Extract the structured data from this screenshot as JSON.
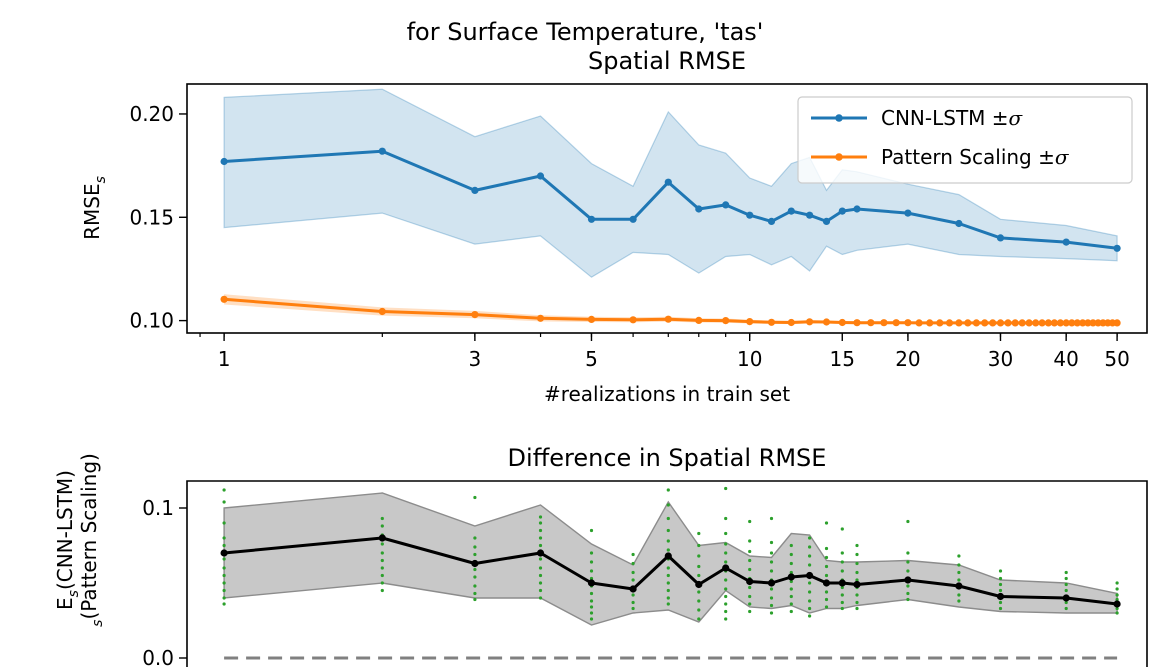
{
  "figure": {
    "suptitle": "for Surface Temperature, 'tas'"
  },
  "chart_data": [
    {
      "type": "line",
      "title": "Spatial RMSE",
      "xlabel": "#realizations in train set",
      "ylabel_base": "RMSE",
      "ylabel_sub": "s",
      "xscale": "log",
      "xlim": [
        0.85,
        57
      ],
      "ylim": [
        0.094,
        0.2145
      ],
      "xticks": [
        1,
        3,
        5,
        10,
        15,
        20,
        30,
        40,
        50
      ],
      "xtick_labels": [
        "1",
        "3",
        "5",
        "10",
        "15",
        "20",
        "30",
        "40",
        "50"
      ],
      "yticks": [
        0.1,
        0.15,
        0.2
      ],
      "ytick_labels": [
        "0.10",
        "0.15",
        "0.20"
      ],
      "legend_position": "upper right",
      "series": [
        {
          "name": "CNN-LSTM ±σ",
          "legend_base": "CNN-LSTM ±",
          "color": "#1f77b4",
          "x": [
            1,
            2,
            3,
            4,
            5,
            6,
            7,
            8,
            9,
            10,
            11,
            12,
            13,
            14,
            15,
            16,
            20,
            25,
            30,
            40,
            50
          ],
          "y": [
            0.177,
            0.182,
            0.163,
            0.17,
            0.149,
            0.149,
            0.167,
            0.154,
            0.156,
            0.151,
            0.148,
            0.153,
            0.151,
            0.148,
            0.153,
            0.154,
            0.152,
            0.147,
            0.14,
            0.138,
            0.135
          ],
          "lower": [
            0.145,
            0.152,
            0.137,
            0.141,
            0.121,
            0.133,
            0.132,
            0.123,
            0.131,
            0.132,
            0.127,
            0.131,
            0.124,
            0.136,
            0.132,
            0.134,
            0.137,
            0.132,
            0.131,
            0.13,
            0.129
          ],
          "upper": [
            0.208,
            0.212,
            0.189,
            0.199,
            0.176,
            0.165,
            0.201,
            0.185,
            0.181,
            0.169,
            0.165,
            0.176,
            0.179,
            0.163,
            0.173,
            0.172,
            0.166,
            0.161,
            0.149,
            0.146,
            0.141
          ]
        },
        {
          "name": "Pattern Scaling ±σ",
          "legend_base": "Pattern Scaling ±",
          "color": "#ff7f0e",
          "x": [
            1,
            2,
            3,
            4,
            5,
            6,
            7,
            8,
            9,
            10,
            11,
            12,
            13,
            14,
            15,
            16,
            17,
            18,
            19,
            20,
            21,
            22,
            23,
            24,
            25,
            26,
            27,
            28,
            29,
            30,
            31,
            32,
            33,
            34,
            35,
            36,
            37,
            38,
            39,
            40,
            41,
            42,
            43,
            44,
            45,
            46,
            47,
            48,
            49,
            50
          ],
          "y": [
            0.1103,
            0.1044,
            0.1029,
            0.1011,
            0.1006,
            0.1004,
            0.1007,
            0.1001,
            0.1,
            0.0995,
            0.0992,
            0.0991,
            0.0994,
            0.0993,
            0.0991,
            0.099,
            0.099,
            0.099,
            0.099,
            0.099,
            0.0989,
            0.0989,
            0.0989,
            0.0989,
            0.0989,
            0.0989,
            0.0989,
            0.0989,
            0.0989,
            0.0989,
            0.0989,
            0.0989,
            0.0989,
            0.0989,
            0.0989,
            0.0989,
            0.0989,
            0.0989,
            0.0989,
            0.0989,
            0.0989,
            0.0989,
            0.0989,
            0.0989,
            0.0989,
            0.0989,
            0.0989,
            0.0989,
            0.0989,
            0.0989
          ],
          "spread": [
            0.0025,
            0.002,
            0.0018,
            0.0015,
            0.0013,
            0.0012,
            0.0012,
            0.001,
            0.001,
            0.0009,
            0.0008,
            0.0008,
            0.0008,
            0.0007,
            0.0007,
            0.0007,
            0.0006,
            0.0006,
            0.0006,
            0.0006,
            0.0005,
            0.0005,
            0.0005,
            0.0005,
            0.0005,
            0.0005,
            0.0005,
            0.0005,
            0.0005,
            0.0005,
            0.0004,
            0.0004,
            0.0004,
            0.0004,
            0.0004,
            0.0004,
            0.0004,
            0.0004,
            0.0004,
            0.0004,
            0.0004,
            0.0004,
            0.0004,
            0.0004,
            0.0004,
            0.0004,
            0.0004,
            0.0004,
            0.0004,
            0.0004
          ]
        }
      ]
    },
    {
      "type": "line",
      "title": "Difference in Spatial RMSE",
      "ylabel_line1_base": "E",
      "ylabel_line1_sub": "s",
      "ylabel_line1_rest": "(CNN-LSTM)",
      "ylabel_line2_sub": "s",
      "ylabel_line2_rest": "(Pattern Scaling)",
      "xscale": "log",
      "xlim": [
        0.85,
        57
      ],
      "ylim": [
        -0.06,
        0.118
      ],
      "yticks": [
        0.0,
        0.1
      ],
      "ytick_labels": [
        "0.0",
        "0.1"
      ],
      "zero_line_color": "#808080",
      "band_color": "#c8c8c8",
      "band_edge_color": "#8c8c8c",
      "points_color": "#2ca02c",
      "series": [
        {
          "name": "mean difference",
          "color": "#000000",
          "x": [
            1,
            2,
            3,
            4,
            5,
            6,
            7,
            8,
            9,
            10,
            11,
            12,
            13,
            14,
            15,
            16,
            20,
            25,
            30,
            40,
            50
          ],
          "y": [
            0.07,
            0.08,
            0.063,
            0.07,
            0.05,
            0.046,
            0.068,
            0.049,
            0.06,
            0.051,
            0.05,
            0.054,
            0.055,
            0.05,
            0.05,
            0.049,
            0.052,
            0.048,
            0.041,
            0.04,
            0.036
          ],
          "lower": [
            0.04,
            0.05,
            0.04,
            0.04,
            0.022,
            0.03,
            0.032,
            0.024,
            0.045,
            0.034,
            0.033,
            0.035,
            0.03,
            0.033,
            0.033,
            0.035,
            0.039,
            0.034,
            0.031,
            0.03,
            0.03
          ],
          "upper": [
            0.1,
            0.11,
            0.088,
            0.102,
            0.076,
            0.062,
            0.104,
            0.075,
            0.077,
            0.068,
            0.067,
            0.083,
            0.082,
            0.065,
            0.064,
            0.064,
            0.065,
            0.062,
            0.052,
            0.05,
            0.043
          ]
        }
      ],
      "realization_points": {
        "x": [
          1,
          2,
          3,
          4,
          5,
          6,
          7,
          8,
          9,
          10,
          11,
          12,
          13,
          14,
          15,
          16,
          20,
          25,
          30,
          40,
          50
        ],
        "y": [
          [
            0.112,
            0.104,
            0.09,
            0.08,
            0.075,
            0.07,
            0.066,
            0.06,
            0.055,
            0.05,
            0.045,
            0.04,
            0.036
          ],
          [
            0.093,
            0.088,
            0.082,
            0.076,
            0.07,
            0.065,
            0.06,
            0.055,
            0.05,
            0.045
          ],
          [
            0.107,
            0.08,
            0.074,
            0.069,
            0.064,
            0.059,
            0.054,
            0.048,
            0.043,
            0.039
          ],
          [
            0.094,
            0.09,
            0.085,
            0.08,
            0.075,
            0.07,
            0.066,
            0.06,
            0.055,
            0.05,
            0.045,
            0.04
          ],
          [
            0.085,
            0.07,
            0.064,
            0.058,
            0.053,
            0.048,
            0.043,
            0.038,
            0.034,
            0.03,
            0.026
          ],
          [
            0.069,
            0.063,
            0.057,
            0.052,
            0.047,
            0.042,
            0.037,
            0.033
          ],
          [
            0.112,
            0.102,
            0.093,
            0.085,
            0.078,
            0.072,
            0.066,
            0.06,
            0.055,
            0.05,
            0.045,
            0.04,
            0.036
          ],
          [
            0.083,
            0.075,
            0.068,
            0.061,
            0.055,
            0.049,
            0.044,
            0.038,
            0.032,
            0.026
          ],
          [
            0.113,
            0.093,
            0.083,
            0.076,
            0.07,
            0.064,
            0.058,
            0.052,
            0.046,
            0.041,
            0.036,
            0.031,
            0.026
          ],
          [
            0.091,
            0.078,
            0.071,
            0.065,
            0.059,
            0.053,
            0.047,
            0.041,
            0.036,
            0.031
          ],
          [
            0.093,
            0.077,
            0.07,
            0.064,
            0.058,
            0.052,
            0.046,
            0.04,
            0.035,
            0.03
          ],
          [
            0.075,
            0.069,
            0.063,
            0.057,
            0.051,
            0.046,
            0.041,
            0.036,
            0.031
          ],
          [
            0.08,
            0.074,
            0.068,
            0.062,
            0.056,
            0.05,
            0.044,
            0.038,
            0.033,
            0.028
          ],
          [
            0.09,
            0.073,
            0.067,
            0.061,
            0.055,
            0.049,
            0.044,
            0.039,
            0.034
          ],
          [
            0.086,
            0.07,
            0.064,
            0.058,
            0.052,
            0.047,
            0.042,
            0.037,
            0.033
          ],
          [
            0.075,
            0.069,
            0.063,
            0.057,
            0.052,
            0.047,
            0.042,
            0.037,
            0.033
          ],
          [
            0.091,
            0.07,
            0.064,
            0.058,
            0.053,
            0.048,
            0.043,
            0.039
          ],
          [
            0.068,
            0.062,
            0.057,
            0.052,
            0.047,
            0.042,
            0.038
          ],
          [
            0.058,
            0.053,
            0.049,
            0.045,
            0.041,
            0.037,
            0.033
          ],
          [
            0.057,
            0.053,
            0.049,
            0.045,
            0.041,
            0.037,
            0.033
          ],
          [
            0.05,
            0.046,
            0.042,
            0.039,
            0.036,
            0.033,
            0.03
          ]
        ]
      }
    }
  ]
}
